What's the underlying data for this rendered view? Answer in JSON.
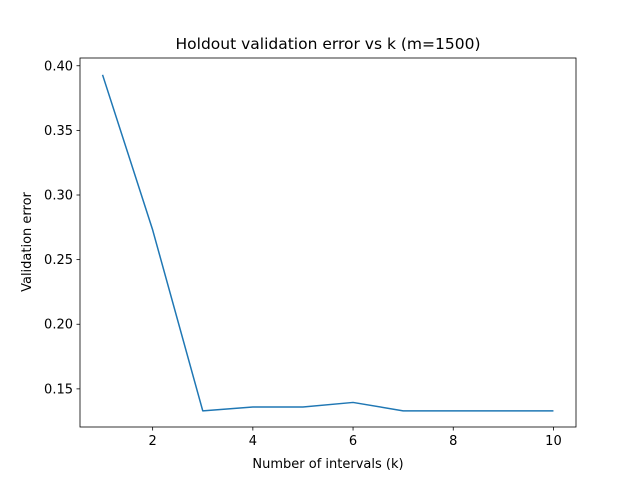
{
  "chart_data": {
    "type": "line",
    "title": "Holdout validation error vs k (m=1500)",
    "xlabel": "Number of intervals (k)",
    "ylabel": "Validation error",
    "xlim": [
      0.55,
      10.45
    ],
    "ylim": [
      0.1205,
      0.406
    ],
    "x_ticks": [
      2,
      4,
      6,
      8,
      10
    ],
    "x_tick_labels": [
      "2",
      "4",
      "6",
      "8",
      "10"
    ],
    "y_ticks": [
      0.15,
      0.2,
      0.25,
      0.3,
      0.35,
      0.4
    ],
    "y_tick_labels": [
      "0.15",
      "0.20",
      "0.25",
      "0.30",
      "0.35",
      "0.40"
    ],
    "grid": false,
    "series": [
      {
        "color": "#1f77b4",
        "x": [
          1,
          2,
          3,
          4,
          5,
          6,
          7,
          8,
          9,
          10
        ],
        "y": [
          0.393,
          0.273,
          0.133,
          0.136,
          0.136,
          0.1395,
          0.133,
          0.133,
          0.133,
          0.133
        ]
      }
    ]
  }
}
